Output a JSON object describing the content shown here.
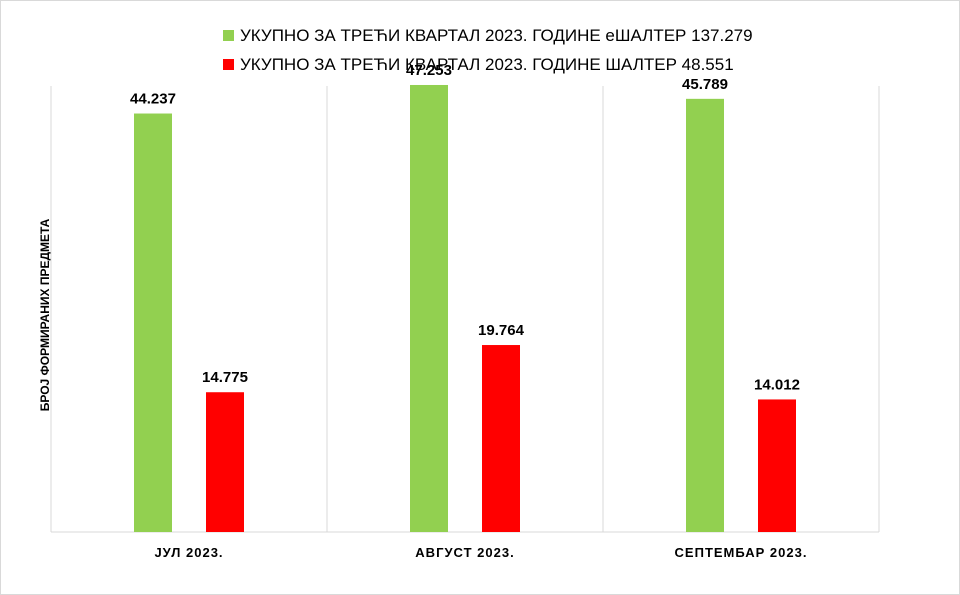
{
  "chart_data": {
    "type": "bar",
    "categories": [
      "ЈУЛ 2023.",
      "АВГУСТ 2023.",
      "СЕПТЕМБАР 2023."
    ],
    "series": [
      {
        "name": "УКУПНО ЗА ТРЕЋИ КВАРТАЛ 2023. ГОДИНЕ еШАЛТЕР 137.279",
        "values": [
          44237,
          47253,
          45789
        ],
        "labels": [
          "44.237",
          "47.253",
          "45.789"
        ],
        "color": "#92d050"
      },
      {
        "name": "УКУПНО ЗА ТРЕЋИ КВАРТАЛ 2023. ГОДИНЕ ШАЛТЕР 48.551",
        "values": [
          14775,
          19764,
          14012
        ],
        "labels": [
          "14.775",
          "19.764",
          "14.012"
        ],
        "color": "#ff0000"
      }
    ],
    "ylabel": "БРОЈ ФОРМИРАНИХ ПРЕДМЕТА",
    "ylim": [
      0,
      50000
    ],
    "grid": "vertical separators between categories",
    "legend": "top-center"
  }
}
